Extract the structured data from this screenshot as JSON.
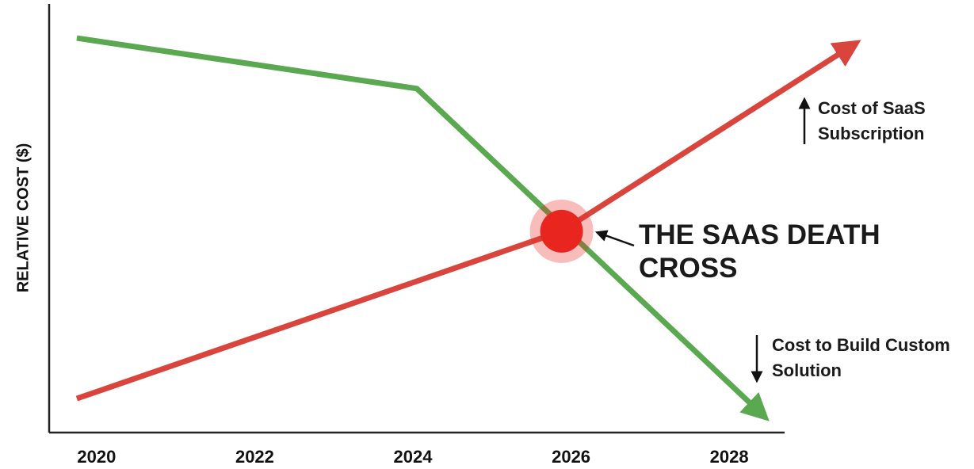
{
  "chart_data": {
    "type": "line",
    "y_label": "RELATIVE COST ($)",
    "xlim": [
      2019.4,
      2028.7
    ],
    "xticks": [
      2020,
      2022,
      2024,
      2026,
      2028
    ],
    "ylim": [
      0,
      100
    ],
    "series": [
      {
        "name": "Cost of SaaS Subscription",
        "color": "#d9453d",
        "direction": "up",
        "x": [
          2019.75,
          2025.88,
          2029.52
        ],
        "values": [
          8,
          47.4,
          90.7
        ]
      },
      {
        "name": "Cost to Build Custom Solution",
        "color": "#5aa84f",
        "direction": "down",
        "x": [
          2019.75,
          2024.05,
          2028.38
        ],
        "values": [
          92.9,
          81,
          4.9
        ]
      }
    ],
    "highlight": {
      "x": 2025.88,
      "y": 47.4,
      "color": "#e8251f"
    },
    "annotation": "THE SAAS DEATH CROSS"
  }
}
